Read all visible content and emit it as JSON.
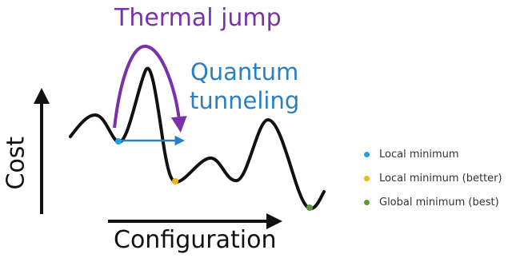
{
  "labels": {
    "thermal": "Thermal jump",
    "quantum_line1": "Quantum",
    "quantum_line2": "tunneling",
    "y_axis": "Cost",
    "x_axis": "Configuration"
  },
  "colors": {
    "curve": "#111111",
    "thermal": "#7a32a8",
    "quantum": "#2a7fc4",
    "local_min": "#1aa3e0",
    "local_better": "#f2b705",
    "global_min": "#5a9a3a"
  },
  "legend": [
    {
      "label": "Local minimum",
      "color": "#1aa3e0"
    },
    {
      "label": "Local minimum (better)",
      "color": "#f2b705"
    },
    {
      "label": "Global minimum (best)",
      "color": "#5a9a3a"
    }
  ]
}
